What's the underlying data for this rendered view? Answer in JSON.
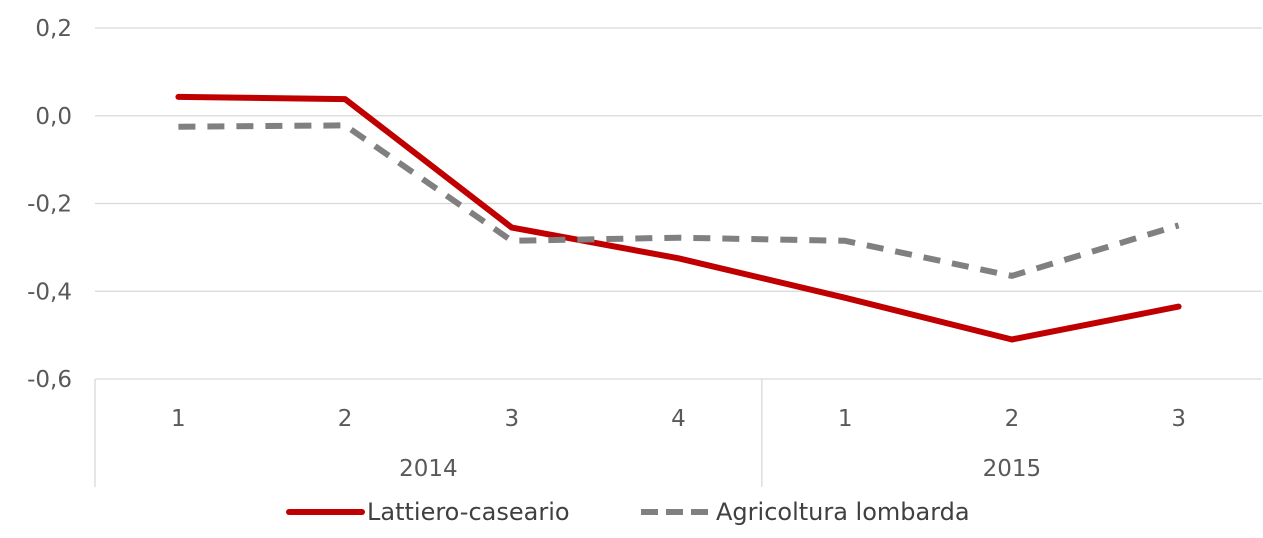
{
  "chart_data": {
    "type": "line",
    "title": "",
    "xlabel": "",
    "ylabel": "",
    "ylim": [
      -0.6,
      0.2
    ],
    "yticks": [
      "0,2",
      "0,0",
      "-0,2",
      "-0,4",
      "-0,6"
    ],
    "ytick_values": [
      0.2,
      0.0,
      -0.2,
      -0.4,
      -0.6
    ],
    "categories": [
      "1",
      "2",
      "3",
      "4",
      "1",
      "2",
      "3"
    ],
    "groups": [
      {
        "label": "2014",
        "count": 4
      },
      {
        "label": "2015",
        "count": 3
      }
    ],
    "grid": true,
    "legend_position": "bottom",
    "series": [
      {
        "name": "Lattiero-caseario",
        "values": [
          0.043,
          0.038,
          -0.255,
          -0.325,
          -0.415,
          -0.51,
          -0.435
        ],
        "color": "#C00000",
        "style": "solid"
      },
      {
        "name": "Agricoltura lombarda",
        "values": [
          -0.025,
          -0.022,
          -0.285,
          -0.278,
          -0.285,
          -0.365,
          -0.25
        ],
        "color": "#808080",
        "style": "dashed"
      }
    ]
  }
}
